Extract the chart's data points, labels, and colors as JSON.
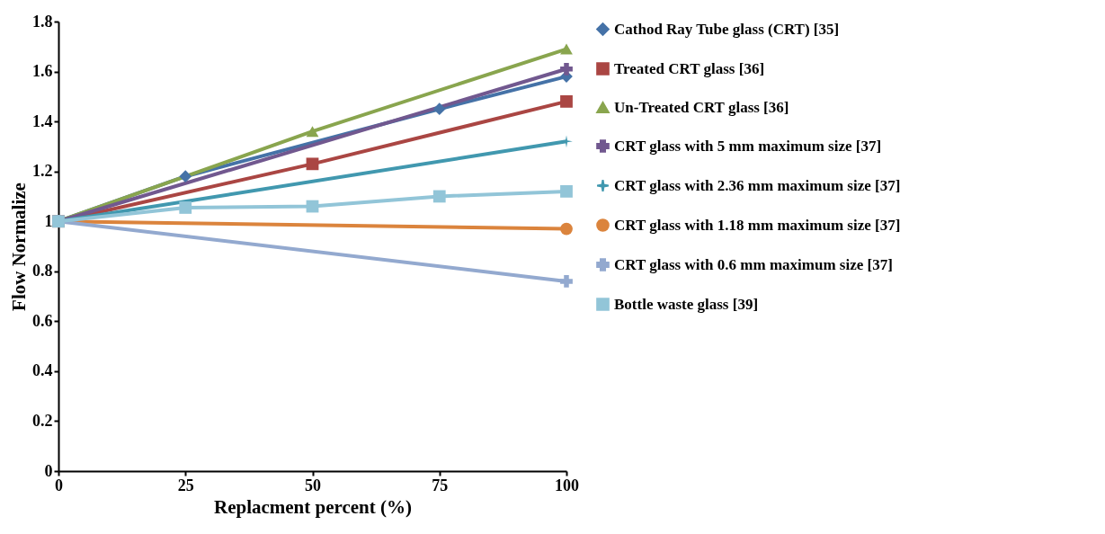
{
  "chart_data": {
    "type": "line",
    "xlabel": "Replacment percent (%)",
    "ylabel": "Flow Normalize",
    "xlim": [
      0,
      100
    ],
    "xticks": [
      0,
      25,
      50,
      75,
      100
    ],
    "ylim": [
      0,
      1.8
    ],
    "yticks": [
      {
        "value": 0,
        "label": "0"
      },
      0.2,
      0.4,
      0.6,
      0.8,
      {
        "value": 1,
        "label": "1"
      },
      1.2,
      1.4,
      1.6,
      1.8
    ],
    "grid": false,
    "legend": "right",
    "series": [
      {
        "name": "Cathod Ray Tube glass (CRT) [35]",
        "color": "#4572a7",
        "marker": "diamond",
        "x": [
          0,
          25,
          75,
          100
        ],
        "values": [
          1,
          1.18,
          1.45,
          1.58
        ]
      },
      {
        "name": "Treated CRT glass [36]",
        "color": "#aa4643",
        "marker": "square",
        "x": [
          0,
          50,
          100
        ],
        "values": [
          1,
          1.23,
          1.48
        ]
      },
      {
        "name": "Un-Treated CRT glass [36]",
        "color": "#89a54e",
        "marker": "triangle",
        "x": [
          0,
          50,
          100
        ],
        "values": [
          1,
          1.36,
          1.69
        ]
      },
      {
        "name": "CRT glass with 5 mm maximum size [37]",
        "color": "#71588f",
        "marker": "cross",
        "x": [
          0,
          100
        ],
        "values": [
          1,
          1.61
        ]
      },
      {
        "name": "CRT glass with 2.36 mm maximum size [37]",
        "color": "#4198af",
        "marker": "star",
        "x": [
          0,
          100
        ],
        "values": [
          1,
          1.32
        ]
      },
      {
        "name": "CRT glass with 1.18 mm maximum size [37]",
        "color": "#db843d",
        "marker": "circle",
        "x": [
          0,
          100
        ],
        "values": [
          1,
          0.97
        ]
      },
      {
        "name": "CRT glass with 0.6 mm maximum size [37]",
        "color": "#93a9cf",
        "marker": "cross",
        "x": [
          0,
          100
        ],
        "values": [
          1,
          0.76
        ]
      },
      {
        "name": "Bottle waste glass [39]",
        "color": "#92c5d8",
        "marker": "square",
        "x": [
          0,
          25,
          50,
          75,
          100
        ],
        "values": [
          1,
          1.055,
          1.06,
          1.1,
          1.12
        ]
      }
    ]
  }
}
